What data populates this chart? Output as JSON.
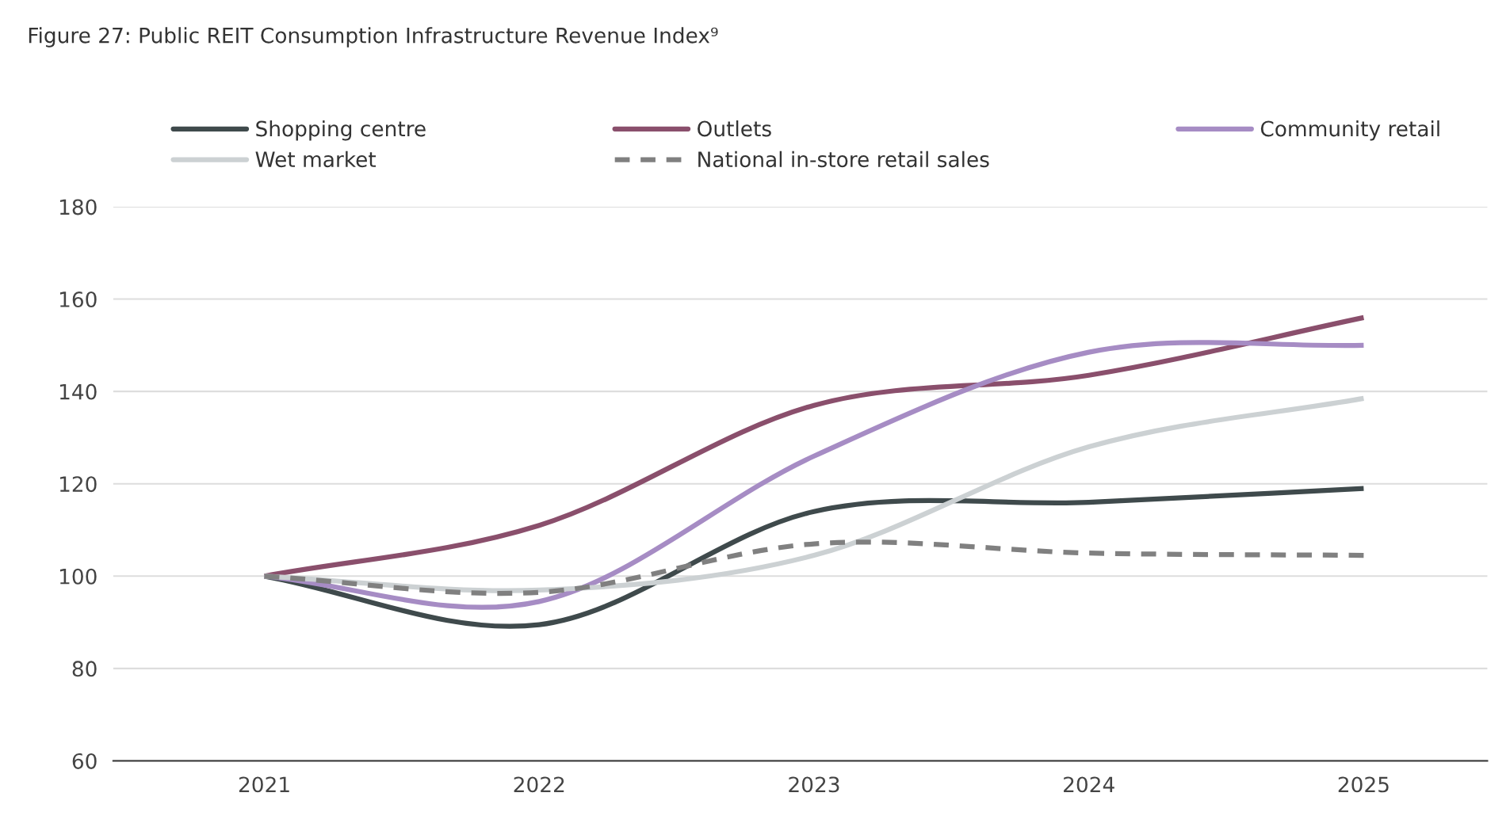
{
  "chart_data": {
    "type": "line",
    "title": "Figure 27: Public REIT Consumption Infrastructure Revenue Index⁹",
    "categories": [
      "2021",
      "2022",
      "2023",
      "2024",
      "2025"
    ],
    "series": [
      {
        "name": "Shopping centre",
        "color": "#3f4a4c",
        "values": [
          100,
          89.5,
          114,
          116,
          119
        ]
      },
      {
        "name": "Outlets",
        "color": "#8a4f6c",
        "values": [
          100,
          111,
          137,
          143.5,
          156
        ]
      },
      {
        "name": "Community retail",
        "color": "#a68cc4",
        "values": [
          100,
          94.5,
          126,
          148.5,
          150
        ]
      },
      {
        "name": "Wet market",
        "color": "#ccd1d3",
        "values": [
          100,
          97,
          104.5,
          128,
          138.5
        ]
      },
      {
        "name": "National in-store retail sales",
        "color": "#808080",
        "values": [
          100,
          96.5,
          107,
          105,
          104.5
        ],
        "line_style": "dashed"
      }
    ],
    "ylim": [
      60,
      180
    ],
    "yticks": [
      60,
      80,
      100,
      120,
      140,
      160,
      180
    ],
    "grid": "y",
    "legend": "top",
    "marker": "none",
    "line_style": "solid"
  }
}
